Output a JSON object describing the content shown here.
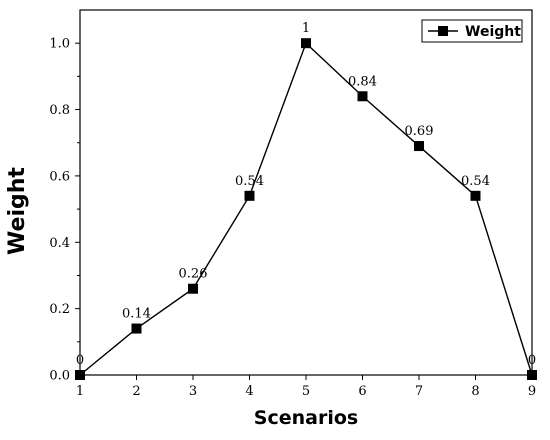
{
  "chart_data": {
    "type": "line",
    "xlabel": "Scenarios",
    "ylabel": "Weight",
    "x": [
      1,
      2,
      3,
      4,
      5,
      6,
      7,
      8,
      9
    ],
    "xlim": [
      1,
      9
    ],
    "ylim": [
      0,
      1.1
    ],
    "x_ticks": [
      "1",
      "2",
      "3",
      "4",
      "5",
      "6",
      "7",
      "8",
      "9"
    ],
    "y_ticks": [
      "0.0",
      "0.2",
      "0.4",
      "0.6",
      "0.8",
      "1.0"
    ],
    "grid": false,
    "legend_position": "top-right",
    "series": [
      {
        "name": "Weight",
        "values": [
          0,
          0.14,
          0.26,
          0.54,
          1,
          0.84,
          0.69,
          0.54,
          0
        ],
        "labels": [
          "0",
          "0.14",
          "0.26",
          "0.54",
          "1",
          "0.84",
          "0.69",
          "0.54",
          "0"
        ],
        "color": "#000000",
        "marker": "square"
      }
    ]
  }
}
